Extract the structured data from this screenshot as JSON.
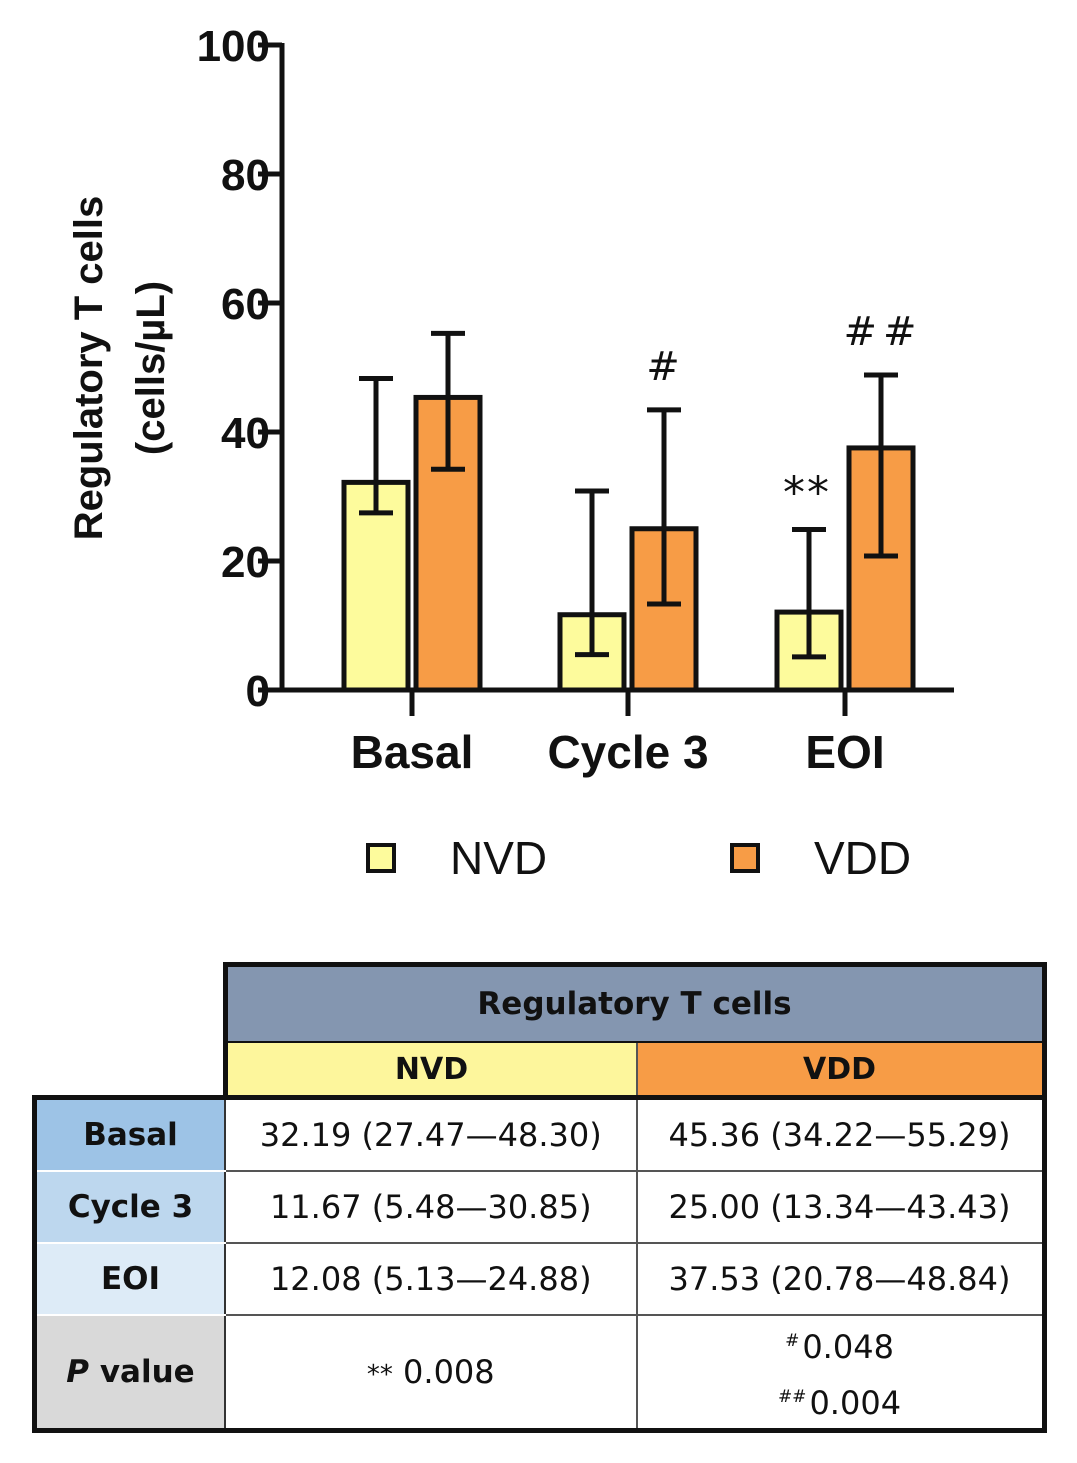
{
  "chart_data": {
    "type": "bar",
    "ylabel_line1": "Regulatory T cells",
    "ylabel_line2": "(cells/µL)",
    "ylim": [
      0,
      100
    ],
    "yticks": [
      "0",
      "20",
      "40",
      "60",
      "80",
      "100"
    ],
    "yticks_values": [
      0,
      20,
      40,
      60,
      80,
      100
    ],
    "categories": [
      "Basal",
      "Cycle 3",
      "EOI"
    ],
    "series": [
      {
        "name": "NVD",
        "color": "#fdfb9c",
        "values": [
          32.19,
          11.67,
          12.08
        ],
        "err_low": [
          27.47,
          5.48,
          5.13
        ],
        "err_high": [
          48.3,
          30.85,
          24.88
        ],
        "annotations": [
          "",
          "",
          "**"
        ]
      },
      {
        "name": "VDD",
        "color": "#f79c46",
        "values": [
          45.36,
          25.0,
          37.53
        ],
        "err_low": [
          34.22,
          13.34,
          20.78
        ],
        "err_high": [
          55.29,
          43.43,
          48.84
        ],
        "annotations": [
          "",
          "#",
          "##"
        ]
      }
    ]
  },
  "legend": {
    "nvd": "NVD",
    "vdd": "VDD",
    "nvd_color": "#fdfb9c",
    "vdd_color": "#f79c46"
  },
  "table": {
    "title": "Regulatory T cells",
    "col_nvd": "NVD",
    "col_vdd": "VDD",
    "rows": [
      {
        "label": "Basal",
        "nvd": "32.19 (27.47—48.30)",
        "vdd": "45.36 (34.22—55.29)"
      },
      {
        "label": "Cycle 3",
        "nvd": "11.67 (5.48—30.85)",
        "vdd": "25.00 (13.34—43.43)"
      },
      {
        "label": "EOI",
        "nvd": "12.08 (5.13—24.88)",
        "vdd": "37.53 (20.78—48.84)"
      }
    ],
    "p_label_italic": "P",
    "p_label_rest": "value",
    "p_nvd_mark": "**",
    "p_nvd_value": "0.008",
    "p_vdd": [
      {
        "mark": "#",
        "value": "0.048"
      },
      {
        "mark": "##",
        "value": "0.004"
      }
    ]
  }
}
